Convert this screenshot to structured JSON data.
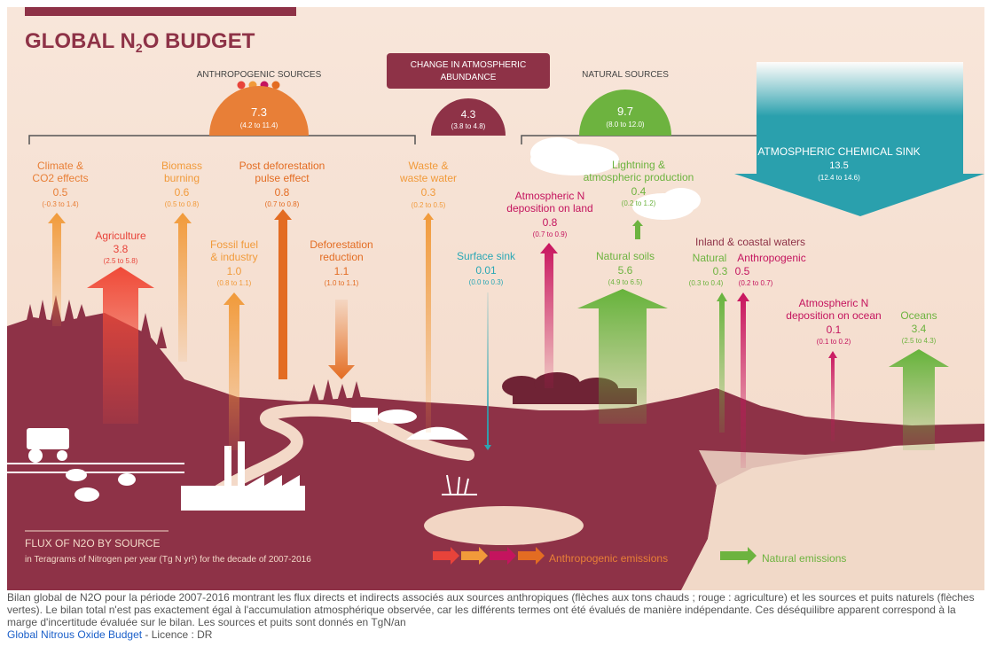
{
  "title": "GLOBAL N",
  "title_sub": "2",
  "title_end": "O BUDGET",
  "anthropogenic": {
    "label": "ANTHROPOGENIC SOURCES",
    "value": "7.3",
    "range": "(4.2 to 11.4)"
  },
  "change": {
    "label_line1": "CHANGE IN ATMOSPHERIC",
    "label_line2": "ABUNDANCE",
    "value": "4.3",
    "range": "(3.8 to 4.8)"
  },
  "natural": {
    "label": "NATURAL SOURCES",
    "value": "9.7",
    "range": "(8.0 to 12.0)"
  },
  "sink": {
    "label": "ATMOSPHERIC CHEMICAL SINK",
    "value": "13.5",
    "range": "(12.4 to 14.6)"
  },
  "fluxes": {
    "climate": {
      "line1": "Climate &",
      "line2": "CO2 effects",
      "value": "0.5",
      "range": "(-0.3 to 1.4)"
    },
    "agriculture": {
      "line1": "Agriculture",
      "value": "3.8",
      "range": "(2.5 to 5.8)"
    },
    "biomass": {
      "line1": "Biomass",
      "line2": "burning",
      "value": "0.6",
      "range": "(0.5 to 0.8)"
    },
    "fossil": {
      "line1": "Fossil fuel",
      "line2": "& industry",
      "value": "1.0",
      "range": "(0.8 to 1.1)"
    },
    "postdef": {
      "line1": "Post deforestation",
      "line2": "pulse effect",
      "value": "0.8",
      "range": "(0.7 to 0.8)"
    },
    "deforest": {
      "line1": "Deforestation",
      "line2": "reduction",
      "value": "1.1",
      "range": "(1.0 to 1.1)"
    },
    "waste": {
      "line1": "Waste &",
      "line2": "waste water",
      "value": "0.3",
      "range": "(0.2 to 0.5)"
    },
    "depland": {
      "line1": "Atmospheric N",
      "line2": "deposition on land",
      "value": "0.8",
      "range": "(0.7 to 0.9)"
    },
    "surface": {
      "line1": "Surface sink",
      "value": "0.01",
      "range": "(0.0 to 0.3)"
    },
    "lightning": {
      "line1": "Lightning &",
      "line2": "atmospheric production",
      "value": "0.4",
      "range": "(0.2 to 1.2)"
    },
    "soils": {
      "line1": "Natural soils",
      "value": "5.6",
      "range": "(4.9 to 6.5)"
    },
    "inland": {
      "header": "Inland & coastal waters"
    },
    "inland_nat": {
      "line1": "Natural",
      "value": "0.3",
      "range": "(0.3 to 0.4)"
    },
    "inland_anth": {
      "line1": "Anthropogenic",
      "value": "0.5",
      "range": "(0.2 to 0.7)"
    },
    "depocean": {
      "line1": "Atmospheric N",
      "line2": "deposition on ocean",
      "value": "0.1",
      "range": "(0.1 to 0.2)"
    },
    "oceans": {
      "line1": "Oceans",
      "value": "3.4",
      "range": "(2.5 to 4.3)"
    }
  },
  "footer": {
    "flux_title": "FLUX OF N2O BY SOURCE",
    "flux_sub": "in Teragrams of Nitrogen per year (Tg N yr¹) for the decade of 2007-2016",
    "legend_anthro": "Anthropogenic emissions",
    "legend_natural": "Natural emissions"
  },
  "caption": {
    "text": "Bilan global de N2O pour la période 2007-2016 montrant les flux directs et indirects associés aux sources anthropiques (flèches aux tons chauds ; rouge : agriculture) et les sources et puits naturels (flèches vertes). Le bilan total n'est pas exactement égal à l'accumulation atmosphérique observée, car les différents termes ont été évalués de manière indépendante. Ces déséquilibre apparent correspond à la marge d'incertitude évaluée sur le bilan. Les sources et puits sont donnés en TgN/an",
    "link": "Global Nitrous Oxide Budget",
    "license": " - Licence : DR"
  },
  "colors": {
    "background": "#f6e3d6",
    "land": "#8e3247",
    "orange": "#e87f37",
    "red": "#e8433a",
    "green": "#6db33f",
    "magenta": "#c4145e",
    "teal": "#2aa7b5",
    "sink": "#2aa0ad",
    "banner": "#8e3247"
  }
}
